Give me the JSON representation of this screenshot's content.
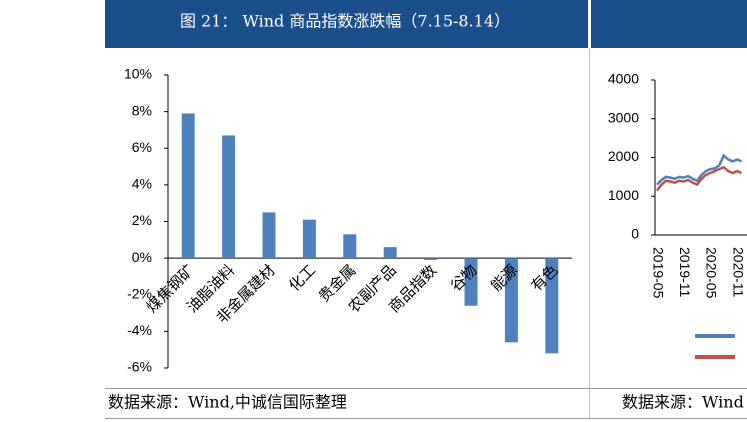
{
  "chart_data": [
    {
      "type": "bar",
      "title": "图 21： Wind 商品指数涨跌幅（7.15-8.14）",
      "source": "数据来源：Wind,中诚信国际整理",
      "categories": [
        "煤焦钢矿",
        "油脂油料",
        "非金属建材",
        "化工",
        "贵金属",
        "农副产品",
        "商品指数",
        "谷物",
        "能源",
        "有色"
      ],
      "values": [
        7.9,
        6.7,
        2.5,
        2.1,
        1.3,
        0.6,
        -0.1,
        -2.6,
        -4.6,
        -5.2
      ],
      "color": "#4f81bd",
      "ylim": [
        -6,
        10
      ],
      "yticks": [
        {
          "value": -6,
          "label": "-6%"
        },
        {
          "value": -4,
          "label": "-4%"
        },
        {
          "value": -2,
          "label": "-2%"
        },
        {
          "value": 0,
          "label": "0%"
        },
        {
          "value": 2,
          "label": "2%"
        },
        {
          "value": 4,
          "label": "4%"
        },
        {
          "value": 6,
          "label": "6%"
        },
        {
          "value": 8,
          "label": "8%"
        },
        {
          "value": 10,
          "label": "10%"
        }
      ],
      "grid": false
    },
    {
      "type": "line",
      "source": "数据来源：Wind",
      "categories": [
        "2019-05",
        null,
        null,
        null,
        null,
        null,
        "2019-11",
        null,
        null,
        null,
        null,
        null,
        "2020-05",
        null,
        null,
        null,
        null,
        null,
        "2020-11",
        null
      ],
      "series": [
        {
          "color": "#4f81bd",
          "values": [
            1300,
            1420,
            1500,
            1480,
            1450,
            1500,
            1480,
            1520,
            1450,
            1400,
            1550,
            1650,
            1700,
            1720,
            1800,
            2050,
            1950,
            1900,
            1950,
            1900
          ]
        },
        {
          "color": "#c0504d",
          "values": [
            1150,
            1300,
            1400,
            1380,
            1350,
            1400,
            1380,
            1420,
            1350,
            1300,
            1450,
            1550,
            1600,
            1650,
            1700,
            1750,
            1650,
            1600,
            1650,
            1600
          ]
        }
      ],
      "ylim": [
        0,
        4000
      ],
      "yticks": [
        0,
        1000,
        2000,
        3000,
        4000
      ],
      "grid": false
    }
  ]
}
